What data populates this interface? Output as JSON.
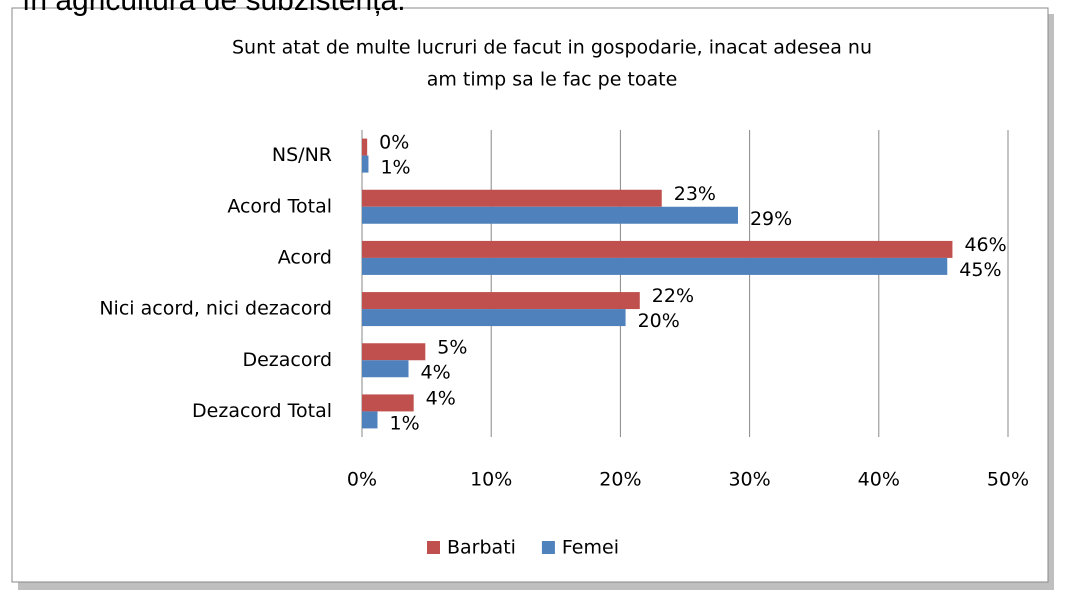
{
  "header_text": "în agricultura de subzistență.",
  "chart_data": {
    "type": "hbar",
    "title": [
      "Sunt atat de multe lucruri de facut in gospodarie, inacat adesea nu",
      "am timp sa le fac pe toate"
    ],
    "categories": [
      "NS/NR",
      "Acord Total",
      "Acord",
      "Nici acord, nici dezacord",
      "Dezacord",
      "Dezacord Total"
    ],
    "series": [
      {
        "name": "Barbati",
        "color": "#c0504d",
        "values": [
          0.4,
          23.2,
          45.7,
          21.5,
          4.9,
          4.0
        ],
        "value_labels": [
          "0%",
          "23%",
          "46%",
          "22%",
          "5%",
          "4%"
        ]
      },
      {
        "name": "Femei",
        "color": "#4f81bd",
        "values": [
          0.5,
          29.1,
          45.3,
          20.4,
          3.6,
          1.2
        ],
        "value_labels": [
          "1%",
          "29%",
          "45%",
          "20%",
          "4%",
          "1%"
        ]
      }
    ],
    "xlim": [
      0,
      50
    ],
    "xticks": [
      {
        "value": 0,
        "label": "0%"
      },
      {
        "value": 10,
        "label": "10%"
      },
      {
        "value": 20,
        "label": "20%"
      },
      {
        "value": 30,
        "label": "30%"
      },
      {
        "value": 40,
        "label": "40%"
      },
      {
        "value": 50,
        "label": "50%"
      }
    ],
    "grid": true,
    "legend": "bottom"
  }
}
